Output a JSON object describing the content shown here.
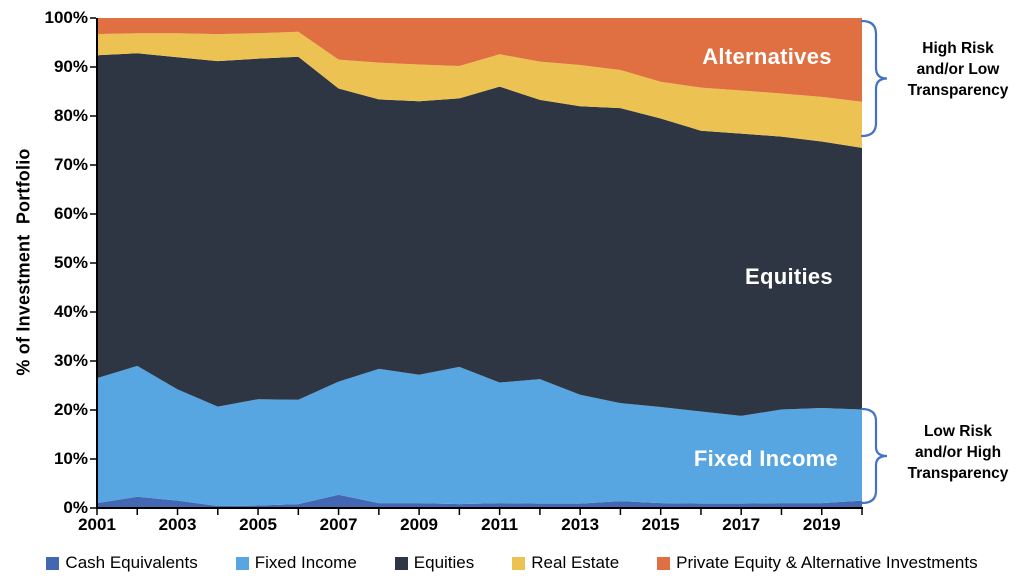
{
  "chart_data": {
    "type": "area",
    "stacked": true,
    "x": [
      2001,
      2002,
      2003,
      2004,
      2005,
      2006,
      2007,
      2008,
      2009,
      2010,
      2011,
      2012,
      2013,
      2014,
      2015,
      2016,
      2017,
      2018,
      2019,
      2020
    ],
    "labeled_tick_years": [
      2001,
      2003,
      2005,
      2007,
      2009,
      2011,
      2013,
      2015,
      2017,
      2019
    ],
    "ylabel": "% of Investment  Portfolio",
    "y_ticks": [
      "0%",
      "10%",
      "20%",
      "30%",
      "40%",
      "50%",
      "60%",
      "70%",
      "80%",
      "90%",
      "100%"
    ],
    "ylim": [
      0,
      100
    ],
    "grid": false,
    "legend_position": "bottom",
    "series": [
      {
        "name": "Cash Equivalents",
        "color": "#4467b2",
        "values": [
          1.0,
          2.3,
          1.5,
          0.4,
          0.5,
          0.8,
          2.7,
          1.0,
          1.0,
          0.8,
          1.0,
          0.9,
          0.9,
          1.4,
          1.0,
          0.9,
          0.9,
          1.0,
          1.0,
          1.5
        ]
      },
      {
        "name": "Fixed Income",
        "color": "#57a5e1",
        "values": [
          25.5,
          26.7,
          22.7,
          20.3,
          21.7,
          21.3,
          23.1,
          27.4,
          26.2,
          28.0,
          24.6,
          25.4,
          22.2,
          20.0,
          19.6,
          18.8,
          17.9,
          19.1,
          19.4,
          18.6
        ]
      },
      {
        "name": "Equities",
        "color": "#2e3644",
        "values": [
          65.9,
          63.8,
          67.8,
          70.5,
          69.5,
          70.0,
          59.8,
          55.0,
          55.8,
          54.8,
          60.4,
          57.0,
          58.9,
          60.2,
          58.9,
          57.3,
          57.6,
          55.7,
          54.4,
          53.4
        ]
      },
      {
        "name": "Real Estate",
        "color": "#ecc253",
        "values": [
          4.3,
          4.1,
          4.9,
          5.5,
          5.2,
          5.1,
          5.9,
          7.5,
          7.5,
          6.6,
          6.6,
          7.8,
          8.4,
          7.8,
          7.5,
          8.8,
          8.8,
          8.8,
          9.1,
          9.4
        ]
      },
      {
        "name": "Private Equity & Alternative Investments",
        "color": "#e06f42",
        "values": [
          3.3,
          3.1,
          3.1,
          3.3,
          3.1,
          2.8,
          8.5,
          9.1,
          9.5,
          9.8,
          7.4,
          8.9,
          9.6,
          10.6,
          13.0,
          14.2,
          14.8,
          15.4,
          16.1,
          17.1
        ]
      }
    ],
    "area_labels": {
      "alternatives": "Alternatives",
      "equities": "Equities",
      "fixed_income": "Fixed Income"
    }
  },
  "annotations": {
    "high_risk": "High Risk\nand/or Low\nTransparency",
    "low_risk": "Low Risk\nand/or High\nTransparency",
    "brace_color": "#4472c4"
  },
  "axis_color": "#000000"
}
